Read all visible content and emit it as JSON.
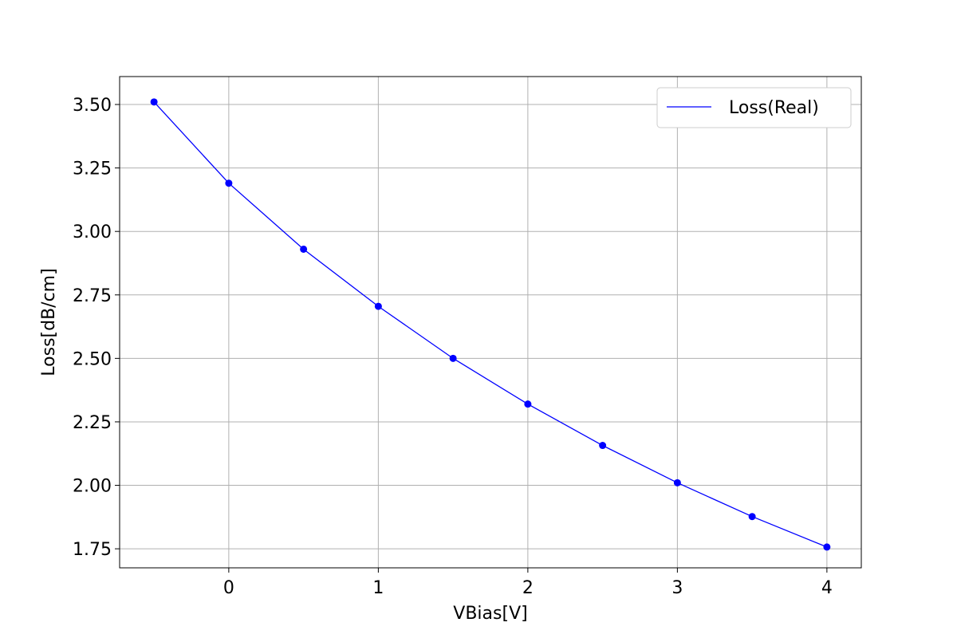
{
  "chart_data": {
    "type": "line",
    "title": "",
    "xlabel": "VBias[V]",
    "ylabel": "Loss[dB/cm]",
    "xlim": [
      -0.73,
      4.23
    ],
    "ylim": [
      1.675,
      3.61
    ],
    "xticks": [
      0,
      1,
      2,
      3,
      4
    ],
    "xtick_labels": [
      "0",
      "1",
      "2",
      "3",
      "4"
    ],
    "yticks": [
      1.75,
      2.0,
      2.25,
      2.5,
      2.75,
      3.0,
      3.25,
      3.5
    ],
    "ytick_labels": [
      "1.75",
      "2.00",
      "2.25",
      "2.50",
      "2.75",
      "3.00",
      "3.25",
      "3.50"
    ],
    "grid": true,
    "legend_position": "top-right",
    "series": [
      {
        "name": "Loss(Real)",
        "color": "#0000ff",
        "marker": "circle",
        "x": [
          -0.5,
          0,
          0.5,
          1,
          1.5,
          2,
          2.5,
          3,
          3.5,
          4
        ],
        "y": [
          3.51,
          3.19,
          2.93,
          2.705,
          2.5,
          2.32,
          2.157,
          2.01,
          1.877,
          1.757
        ]
      }
    ]
  }
}
